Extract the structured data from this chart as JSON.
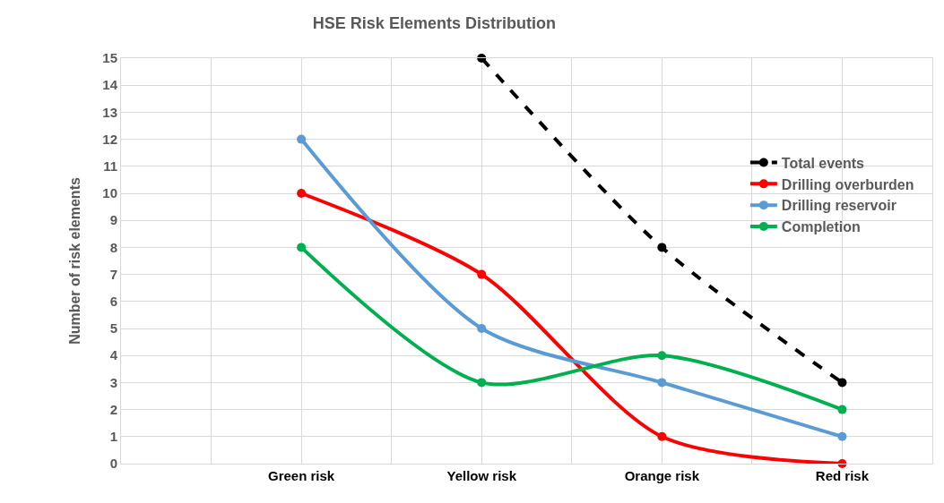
{
  "chart_data": {
    "type": "line",
    "title": "HSE Risk Elements Distribution",
    "ylabel": "Number of risk elements",
    "categories": [
      null,
      "Green risk",
      "Yellow risk",
      "Orange risk",
      "Red risk"
    ],
    "series": [
      {
        "name": "Total events",
        "color": "#000000",
        "values": [
          null,
          null,
          15,
          8,
          3
        ],
        "line_style": "dashed"
      },
      {
        "name": "Drilling overburden",
        "color": "#ff0000",
        "values": [
          null,
          10,
          7,
          1,
          0
        ]
      },
      {
        "name": "Drilling reservoir",
        "color": "#5b9bd5",
        "values": [
          null,
          12,
          5,
          3,
          1
        ]
      },
      {
        "name": "Completion",
        "color": "#00b050",
        "values": [
          null,
          8,
          3,
          4,
          2
        ]
      }
    ],
    "ylim": [
      0,
      15
    ],
    "yticks": [
      0,
      1,
      2,
      3,
      4,
      5,
      6,
      7,
      8,
      9,
      10,
      11,
      12,
      13,
      14,
      15
    ],
    "grid": true,
    "legend": "right",
    "marker": "circle",
    "line_style": "solid"
  }
}
